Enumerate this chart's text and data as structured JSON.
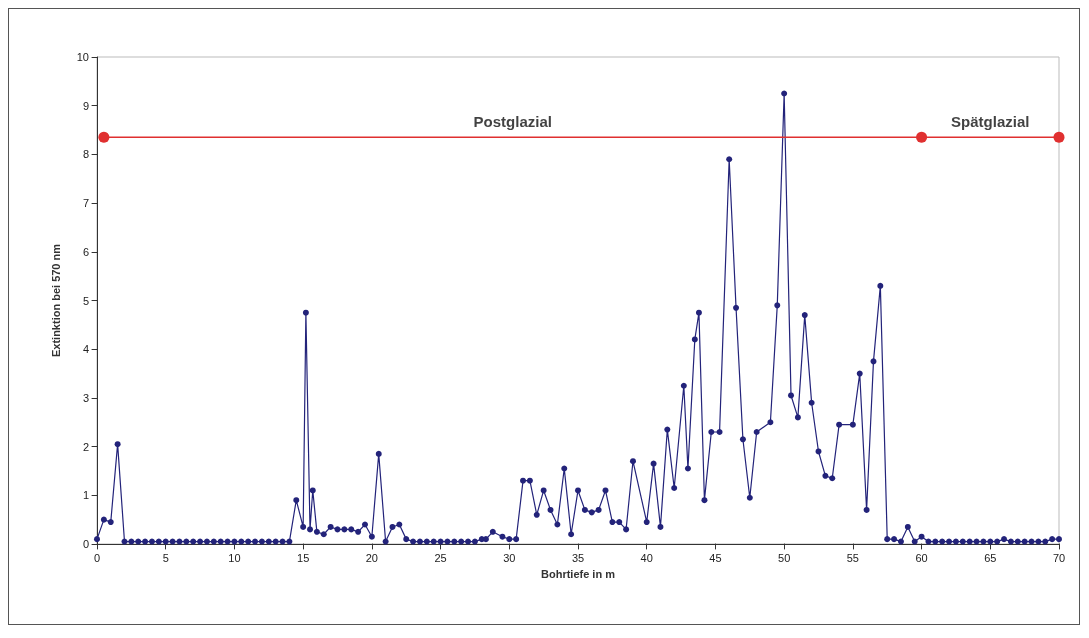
{
  "chart_data": {
    "type": "line",
    "xlabel": "Bohrtiefe in m",
    "ylabel": "Extinktion bei 570 nm",
    "xlim": [
      0,
      70
    ],
    "xticks": [
      0,
      5,
      10,
      15,
      20,
      25,
      30,
      35,
      40,
      45,
      50,
      55,
      60,
      65,
      70
    ],
    "ylim": [
      0,
      10
    ],
    "yticks": [
      0,
      1,
      2,
      3,
      4,
      5,
      6,
      7,
      8,
      9,
      10
    ],
    "grid": false,
    "marker": "circle",
    "line_style": "solid",
    "series": [
      {
        "color": "#23237a",
        "x": [
          0,
          0.5,
          1,
          1.5,
          2,
          2.5,
          3,
          3.5,
          4,
          4.5,
          5,
          5.5,
          6,
          6.5,
          7,
          7.5,
          8,
          8.5,
          9,
          9.5,
          10,
          10.5,
          11,
          11.5,
          12,
          12.5,
          13,
          13.5,
          14,
          14.5,
          15,
          15.2,
          15.5,
          15.7,
          16,
          16.5,
          17,
          17.5,
          18,
          18.5,
          19,
          19.5,
          20,
          20.5,
          21,
          21.5,
          22,
          22.5,
          23,
          23.5,
          24,
          24.5,
          25,
          25.5,
          26,
          26.5,
          27,
          27.5,
          28,
          28.3,
          28.8,
          29.5,
          30,
          30.5,
          31,
          31.5,
          32,
          32.5,
          33,
          33.5,
          34,
          34.5,
          35,
          35.5,
          36,
          36.5,
          37,
          37.5,
          38,
          38.5,
          39,
          40,
          40.5,
          41,
          41.5,
          42,
          42.7,
          43,
          43.5,
          43.8,
          44.2,
          44.7,
          45.3,
          46,
          46.5,
          47,
          47.5,
          48,
          49,
          49.5,
          50,
          50.5,
          51,
          51.5,
          52,
          52.5,
          53,
          53.5,
          54,
          55,
          55.5,
          56,
          56.5,
          57,
          57.5,
          58,
          58.5,
          59,
          59.5,
          60,
          60.5,
          61,
          61.5,
          62,
          62.5,
          63,
          63.5,
          64,
          64.5,
          65,
          65.5,
          66,
          66.5,
          67,
          67.5,
          68,
          68.5,
          69,
          69.5,
          70
        ],
        "values": [
          0.1,
          0.5,
          0.45,
          2.05,
          0.05,
          0.05,
          0.05,
          0.05,
          0.05,
          0.05,
          0.05,
          0.05,
          0.05,
          0.05,
          0.05,
          0.05,
          0.05,
          0.05,
          0.05,
          0.05,
          0.05,
          0.05,
          0.05,
          0.05,
          0.05,
          0.05,
          0.05,
          0.05,
          0.05,
          0.9,
          0.35,
          4.75,
          0.3,
          1.1,
          0.25,
          0.2,
          0.35,
          0.3,
          0.3,
          0.3,
          0.25,
          0.4,
          0.15,
          1.85,
          0.05,
          0.35,
          0.4,
          0.1,
          0.05,
          0.05,
          0.05,
          0.05,
          0.05,
          0.05,
          0.05,
          0.05,
          0.05,
          0.05,
          0.1,
          0.1,
          0.25,
          0.15,
          0.1,
          0.1,
          1.3,
          1.3,
          0.6,
          1.1,
          0.7,
          0.4,
          1.55,
          0.2,
          1.1,
          0.7,
          0.65,
          0.7,
          1.1,
          0.45,
          0.45,
          0.3,
          1.7,
          0.45,
          1.65,
          0.35,
          2.35,
          1.15,
          3.25,
          1.55,
          4.2,
          4.75,
          0.9,
          2.3,
          2.3,
          7.9,
          4.85,
          2.15,
          0.95,
          2.3,
          2.5,
          4.9,
          9.25,
          3.05,
          2.6,
          4.7,
          2.9,
          1.9,
          1.4,
          1.35,
          2.45,
          2.45,
          3.5,
          0.7,
          3.75,
          5.3,
          0.1,
          0.1,
          0.05,
          0.35,
          0.05,
          0.15,
          0.05,
          0.05,
          0.05,
          0.05,
          0.05,
          0.05,
          0.05,
          0.05,
          0.05,
          0.05,
          0.05,
          0.1,
          0.05,
          0.05,
          0.05,
          0.05,
          0.05,
          0.05,
          0.1,
          0.1
        ]
      },
      {
        "color": "#e03030",
        "x": [
          0.5,
          60,
          70
        ],
        "values": [
          8.35,
          8.35,
          8.35
        ]
      }
    ],
    "annotations": [
      "Postglazial",
      "Spätglazial"
    ]
  }
}
